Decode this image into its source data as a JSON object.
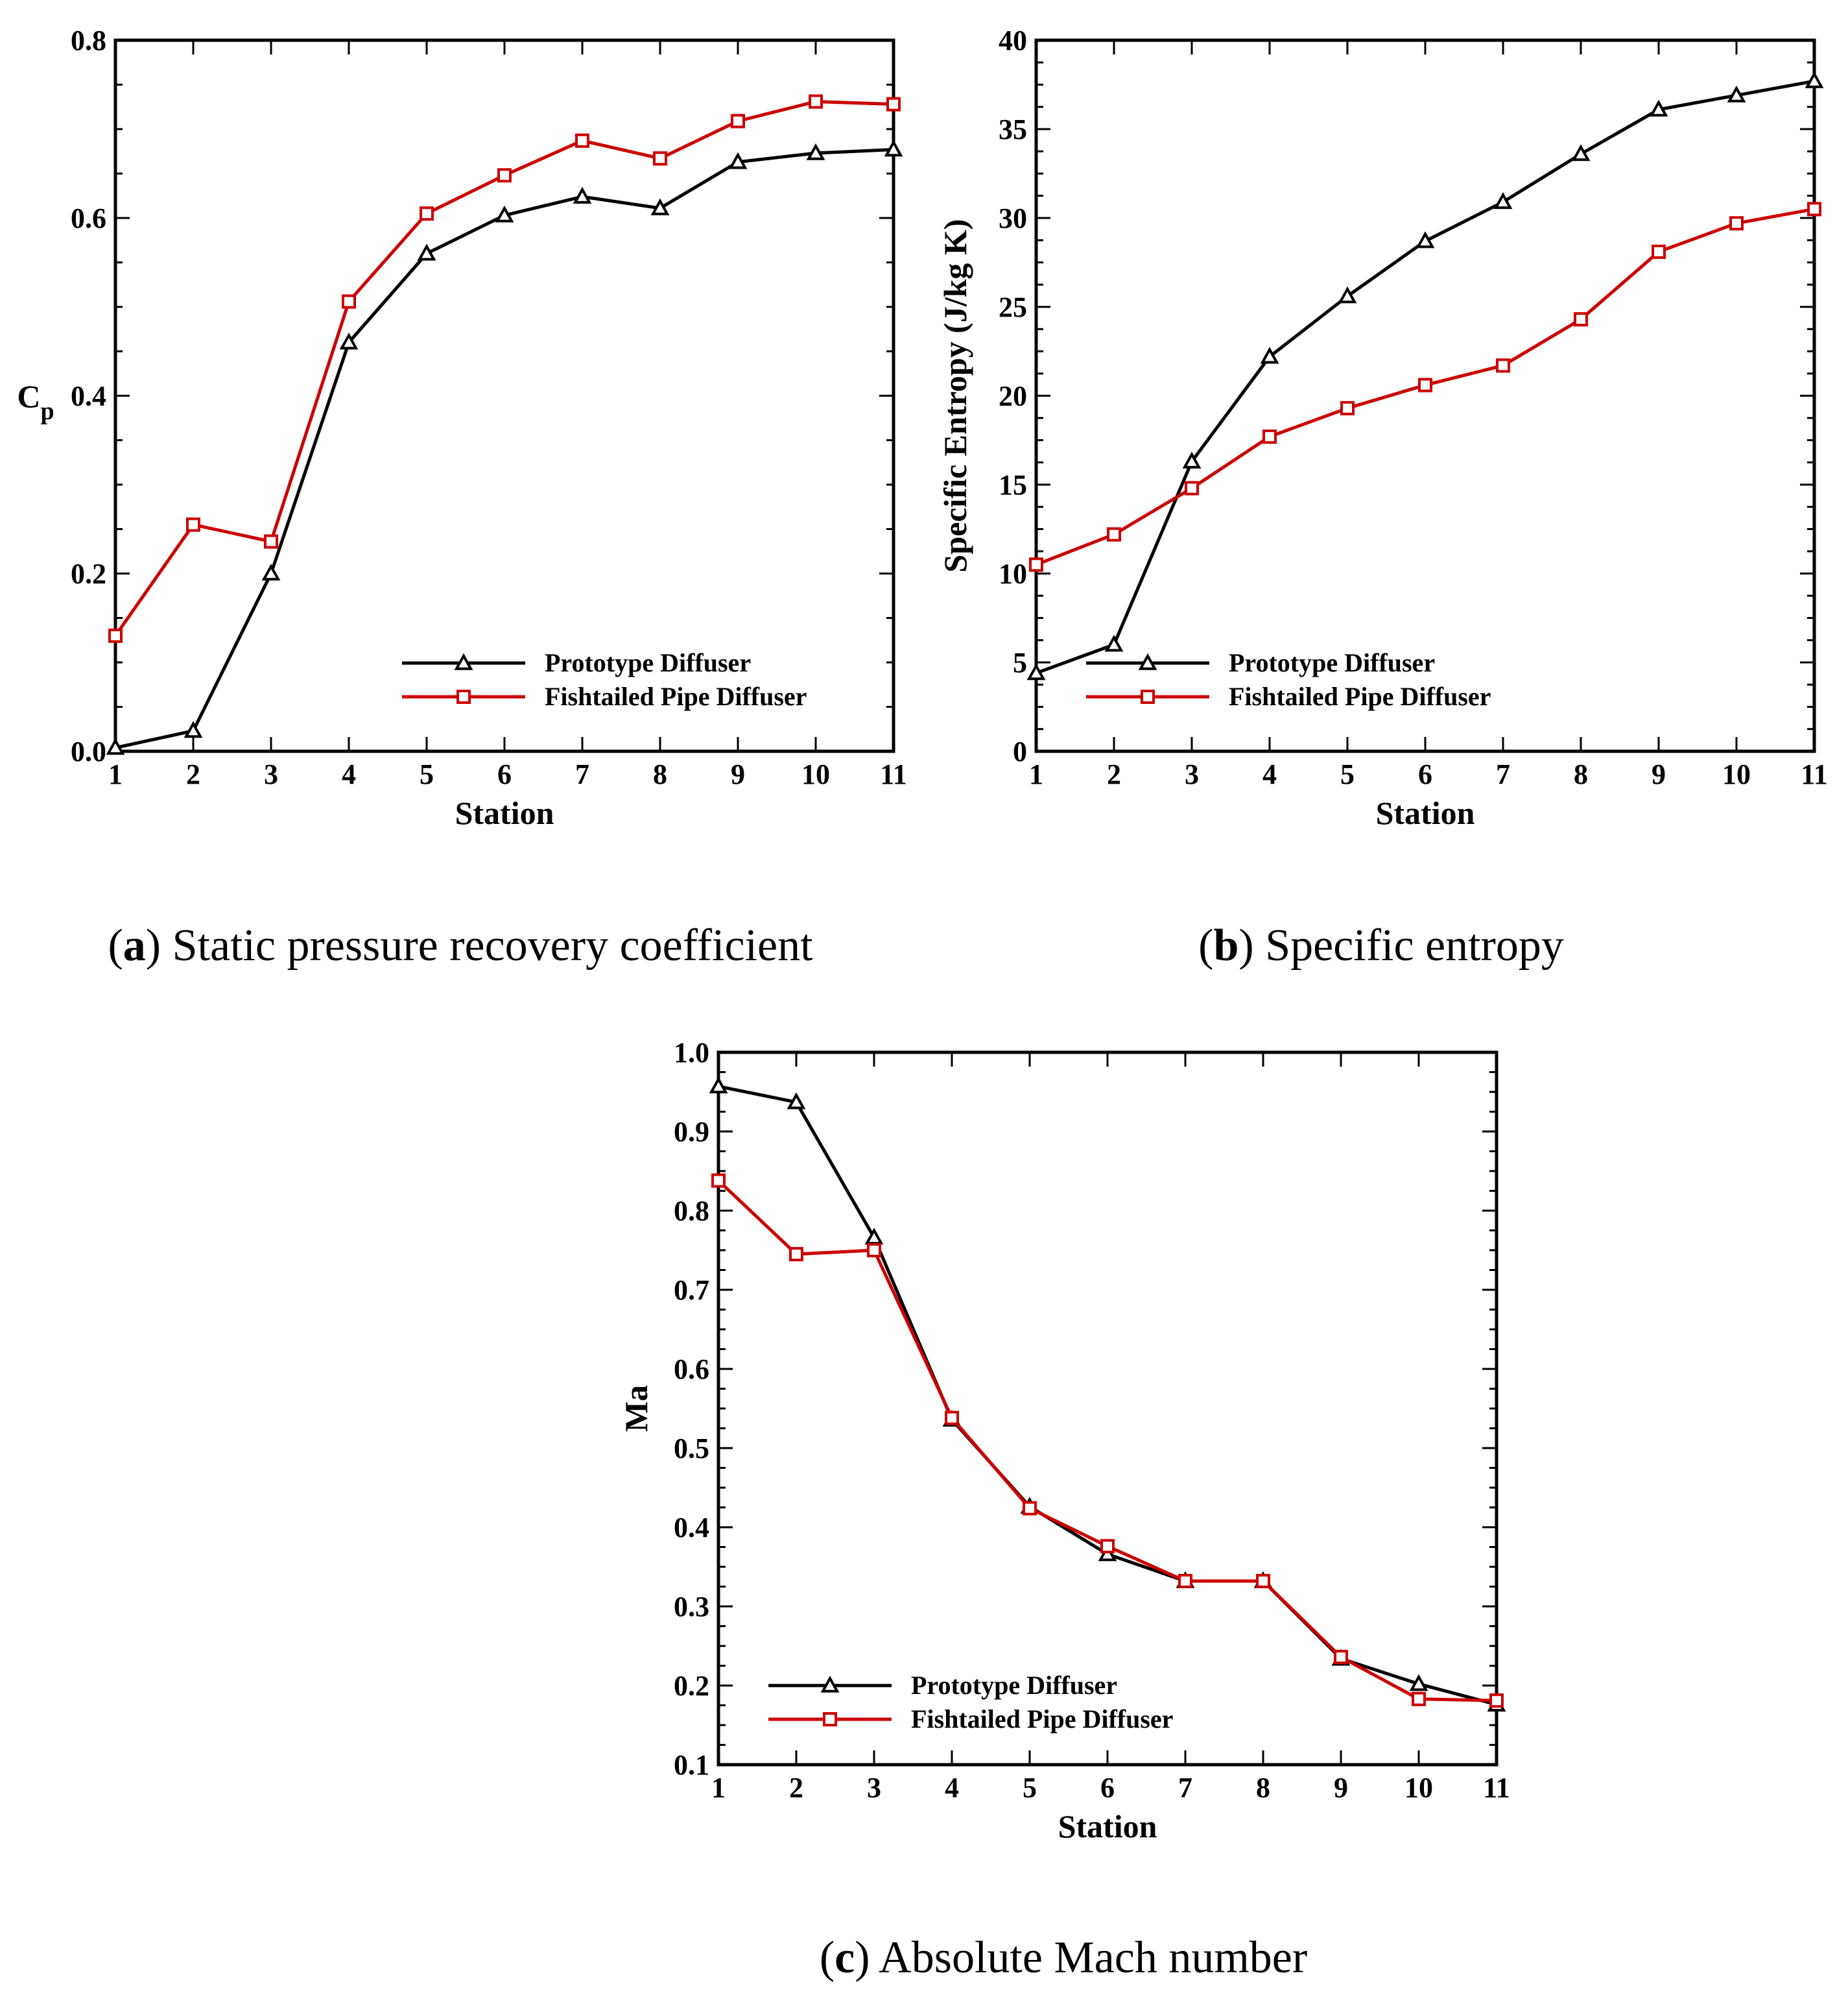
{
  "colors": {
    "prototype": "#000000",
    "fishtailed": "#cc0000"
  },
  "chart_data": [
    {
      "id": "a",
      "type": "line",
      "caption_letter": "a",
      "caption_text": " Static pressure recovery coefficient",
      "xlabel": "Station",
      "ylabel": "Cp",
      "ylabel_main": "C",
      "ylabel_sub": "p",
      "xlim": [
        1,
        11
      ],
      "ylim": [
        0,
        0.8
      ],
      "xticks": [
        1,
        2,
        3,
        4,
        5,
        6,
        7,
        8,
        9,
        10,
        11
      ],
      "yticks": [
        "0.0",
        "0.2",
        "0.4",
        "0.6",
        "0.8"
      ],
      "legend_position": "bottom-right",
      "x": [
        1,
        2,
        3,
        4,
        5,
        6,
        7,
        8,
        9,
        10,
        11
      ],
      "series": [
        {
          "name": "Prototype Diffuser",
          "marker": "triangle",
          "color_key": "prototype",
          "values": [
            0.004,
            0.023,
            0.2,
            0.46,
            0.56,
            0.603,
            0.624,
            0.611,
            0.663,
            0.673,
            0.677
          ]
        },
        {
          "name": "Fishtailed Pipe Diffuser",
          "marker": "square",
          "color_key": "fishtailed",
          "values": [
            0.13,
            0.255,
            0.236,
            0.506,
            0.605,
            0.648,
            0.687,
            0.667,
            0.709,
            0.731,
            0.728
          ]
        }
      ]
    },
    {
      "id": "b",
      "type": "line",
      "caption_letter": "b",
      "caption_text": " Specific entropy",
      "xlabel": "Station",
      "ylabel": "Specific Entropy (J/kg K)",
      "xlim": [
        1,
        11
      ],
      "ylim": [
        0,
        40
      ],
      "xticks": [
        1,
        2,
        3,
        4,
        5,
        6,
        7,
        8,
        9,
        10,
        11
      ],
      "yticks": [
        "0",
        "5",
        "10",
        "15",
        "20",
        "25",
        "30",
        "35",
        "40"
      ],
      "legend_position": "bottom-right",
      "x": [
        1,
        2,
        3,
        4,
        5,
        6,
        7,
        8,
        9,
        10,
        11
      ],
      "series": [
        {
          "name": "Prototype Diffuser",
          "marker": "triangle",
          "color_key": "prototype",
          "values": [
            4.4,
            6.0,
            16.3,
            22.2,
            25.6,
            28.7,
            30.9,
            33.6,
            36.1,
            36.9,
            37.7
          ]
        },
        {
          "name": "Fishtailed Pipe Diffuser",
          "marker": "square",
          "color_key": "fishtailed",
          "values": [
            10.5,
            12.2,
            14.8,
            17.7,
            19.3,
            20.6,
            21.7,
            24.3,
            28.1,
            29.7,
            30.5
          ]
        }
      ]
    },
    {
      "id": "c",
      "type": "line",
      "caption_letter": "c",
      "caption_text": " Absolute Mach number",
      "xlabel": "Station",
      "ylabel": "Ma",
      "xlim": [
        1,
        11
      ],
      "ylim": [
        0.1,
        1.0
      ],
      "xticks": [
        1,
        2,
        3,
        4,
        5,
        6,
        7,
        8,
        9,
        10,
        11
      ],
      "yticks": [
        "0.1",
        "0.2",
        "0.3",
        "0.4",
        "0.5",
        "0.6",
        "0.7",
        "0.8",
        "0.9",
        "1.0"
      ],
      "legend_position": "bottom-left",
      "x": [
        1,
        2,
        3,
        4,
        5,
        6,
        7,
        8,
        9,
        10,
        11
      ],
      "series": [
        {
          "name": "Prototype Diffuser",
          "marker": "triangle",
          "color_key": "prototype",
          "values": [
            0.957,
            0.937,
            0.766,
            0.536,
            0.426,
            0.366,
            0.332,
            0.332,
            0.234,
            0.202,
            0.176
          ]
        },
        {
          "name": "Fishtailed Pipe Diffuser",
          "marker": "square",
          "color_key": "fishtailed",
          "values": [
            0.838,
            0.745,
            0.75,
            0.538,
            0.424,
            0.376,
            0.332,
            0.332,
            0.236,
            0.183,
            0.181
          ]
        }
      ]
    }
  ]
}
